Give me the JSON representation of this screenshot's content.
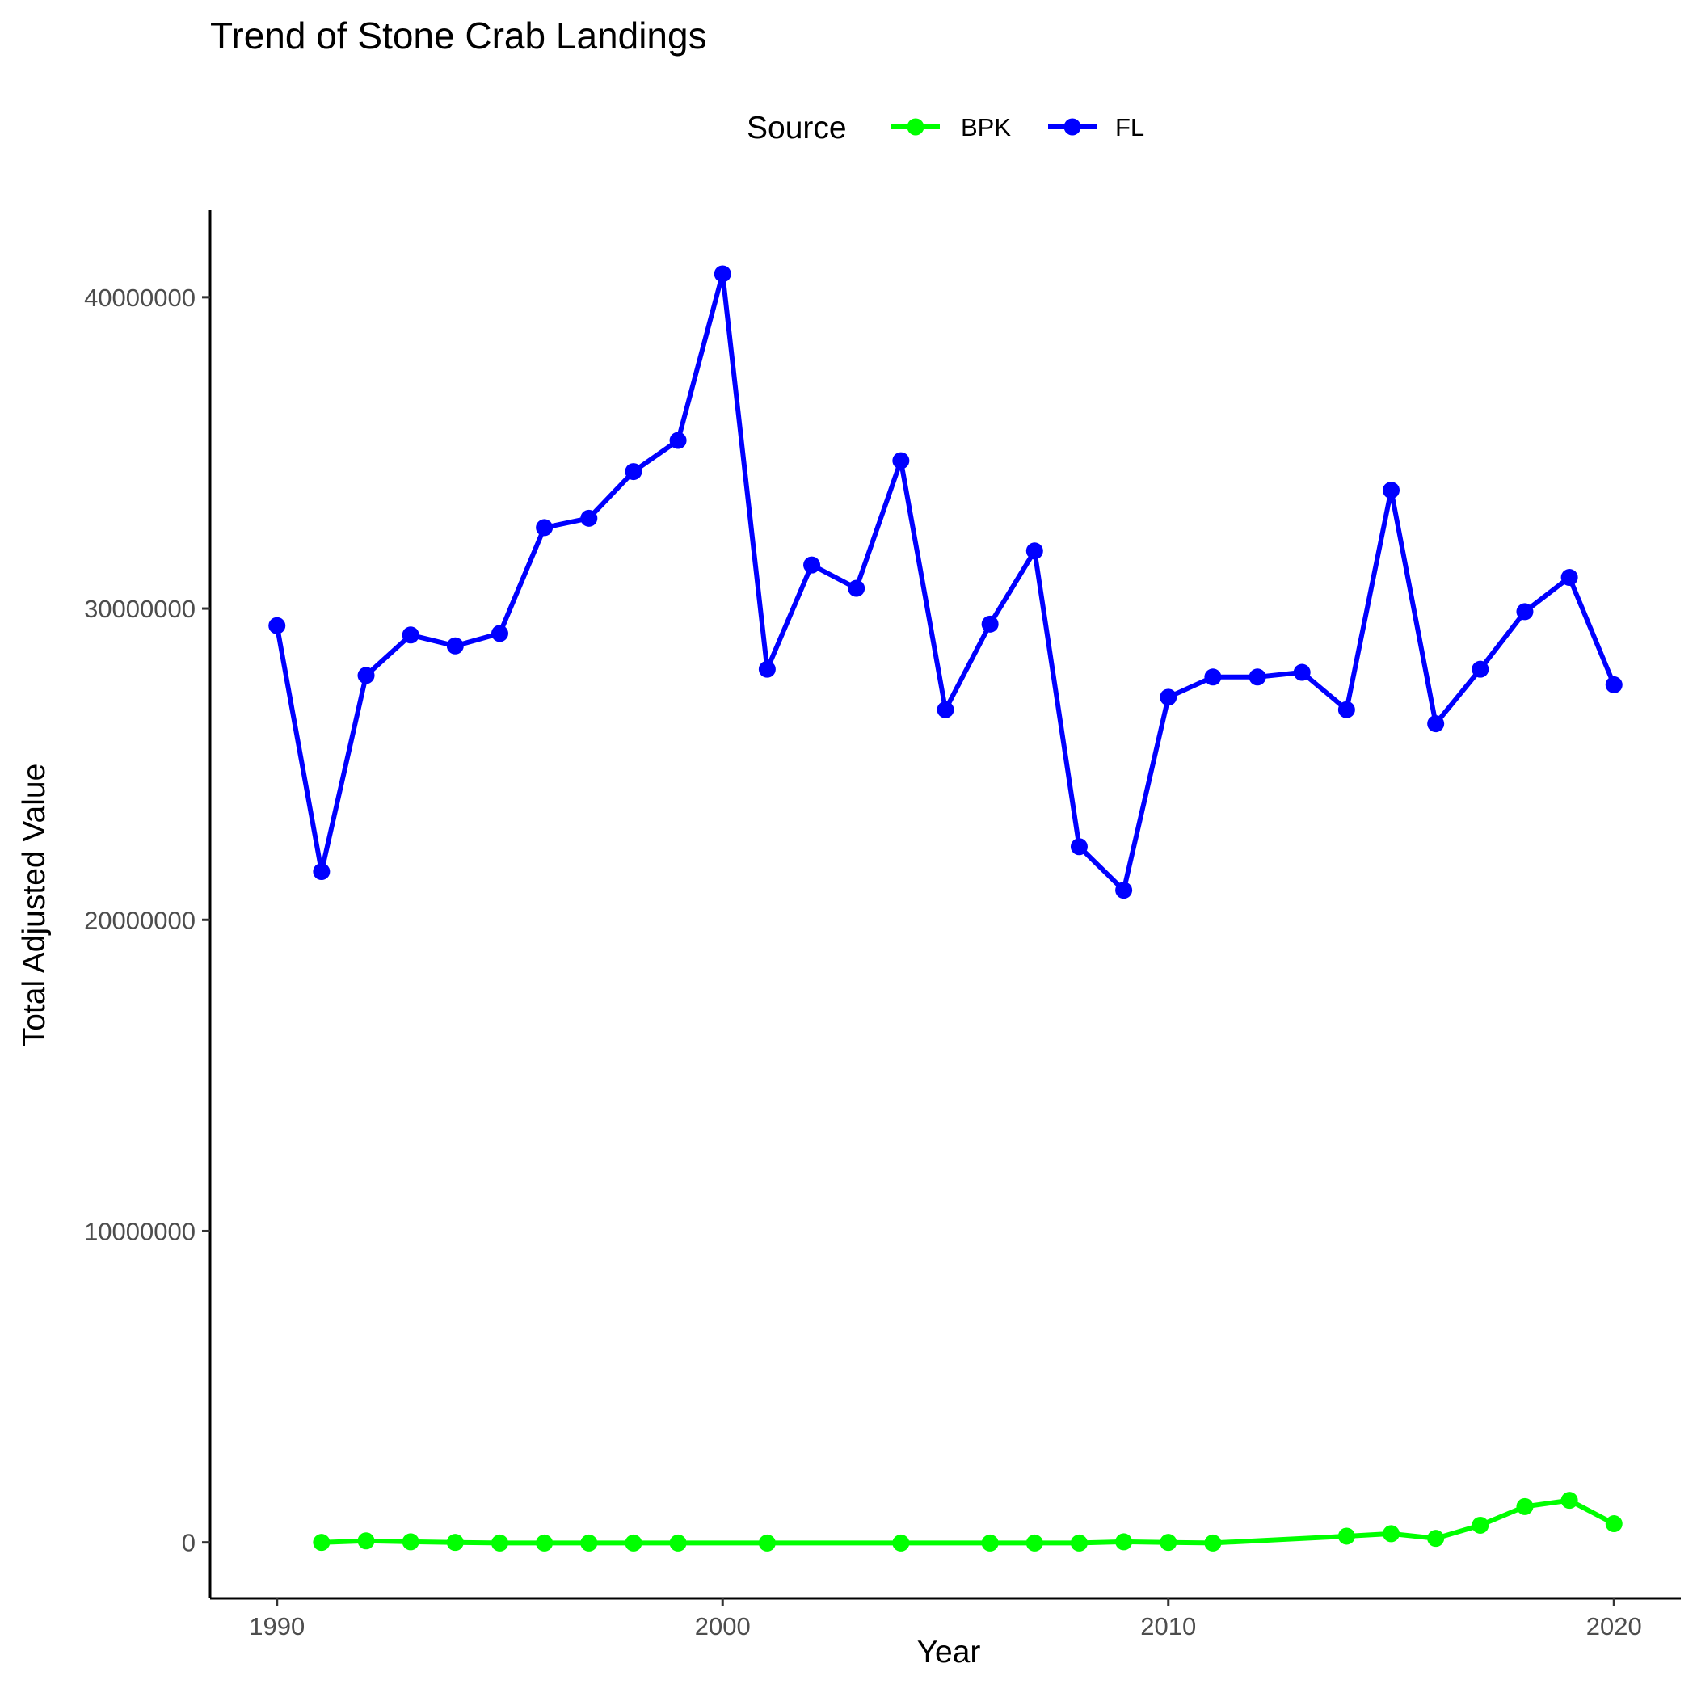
{
  "chart_data": {
    "type": "line",
    "title": "Trend of Stone Crab Landings",
    "xlabel": "Year",
    "ylabel": "Total Adjusted Value",
    "xlim": [
      1988.5,
      2021.5
    ],
    "ylim": [
      -1800000,
      42800000
    ],
    "x_ticks": [
      1990,
      2000,
      2010,
      2020
    ],
    "y_ticks": [
      0,
      10000000,
      20000000,
      30000000,
      40000000
    ],
    "x_tick_labels": [
      "1990",
      "2000",
      "2010",
      "2020"
    ],
    "y_tick_labels": [
      "0",
      "10000000",
      "20000000",
      "30000000",
      "40000000"
    ],
    "grid": false,
    "legend": {
      "title": "Source",
      "position": "top",
      "entries": [
        "BPK",
        "FL"
      ]
    },
    "series": [
      {
        "name": "BPK",
        "color": "#00ff00",
        "points": [
          [
            1991,
            0
          ],
          [
            1992,
            50000
          ],
          [
            1993,
            20000
          ],
          [
            1994,
            0
          ],
          [
            1995,
            -20000
          ],
          [
            1996,
            -20000
          ],
          [
            1997,
            -20000
          ],
          [
            1998,
            -20000
          ],
          [
            1999,
            -20000
          ],
          [
            2001,
            -20000
          ],
          [
            2004,
            -20000
          ],
          [
            2006,
            -20000
          ],
          [
            2007,
            -20000
          ],
          [
            2008,
            -20000
          ],
          [
            2009,
            20000
          ],
          [
            2010,
            0
          ],
          [
            2011,
            -20000
          ],
          [
            2014,
            200000
          ],
          [
            2015,
            280000
          ],
          [
            2016,
            130000
          ],
          [
            2017,
            550000
          ],
          [
            2018,
            1150000
          ],
          [
            2019,
            1350000
          ],
          [
            2020,
            600000
          ]
        ]
      },
      {
        "name": "FL",
        "color": "#0000ff",
        "points": [
          [
            1990,
            29450000
          ],
          [
            1991,
            21550000
          ],
          [
            1992,
            27850000
          ],
          [
            1993,
            29150000
          ],
          [
            1994,
            28800000
          ],
          [
            1995,
            29200000
          ],
          [
            1996,
            32600000
          ],
          [
            1997,
            32900000
          ],
          [
            1998,
            34400000
          ],
          [
            1999,
            35400000
          ],
          [
            2000,
            40750000
          ],
          [
            2001,
            28050000
          ],
          [
            2002,
            31400000
          ],
          [
            2003,
            30650000
          ],
          [
            2004,
            34750000
          ],
          [
            2005,
            26750000
          ],
          [
            2006,
            29500000
          ],
          [
            2007,
            31850000
          ],
          [
            2008,
            22350000
          ],
          [
            2009,
            20950000
          ],
          [
            2010,
            27150000
          ],
          [
            2011,
            27800000
          ],
          [
            2012,
            27800000
          ],
          [
            2013,
            27950000
          ],
          [
            2014,
            26750000
          ],
          [
            2015,
            33800000
          ],
          [
            2016,
            26300000
          ],
          [
            2017,
            28050000
          ],
          [
            2018,
            29900000
          ],
          [
            2019,
            31000000
          ],
          [
            2020,
            27550000
          ]
        ]
      }
    ]
  }
}
